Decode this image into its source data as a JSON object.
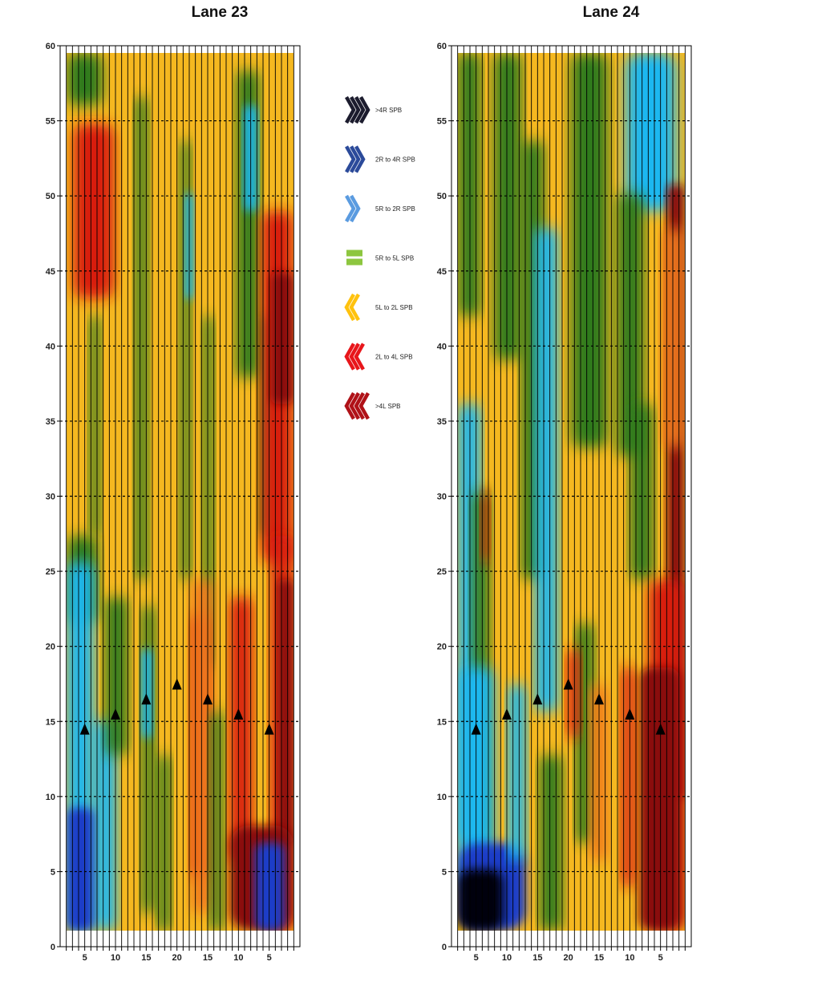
{
  "colors": {
    "very_right": "#1c1c2e",
    "right_2_4": "#2b4a9a",
    "right_small": "#5a9be0",
    "neutral": "#8dc63f",
    "left_small": "#ffc20e",
    "left_2_4": "#e8161b",
    "very_left": "#b01218",
    "field_blue": "#1a3cc8",
    "field_cyan": "#1ab8f0",
    "field_green": "#2f7a1a",
    "field_yellow": "#f5b820",
    "field_orange": "#f07a1a",
    "field_red": "#d81a10",
    "field_darkred": "#8a0a0a",
    "field_black": "#050510"
  },
  "legend": [
    {
      "label": ">4R SPB",
      "icon": "triple-chevron-right-icon",
      "color": "#1c1c2e"
    },
    {
      "label": "2R to 4R SPB",
      "icon": "double-chevron-right-icon",
      "color": "#2b4a9a"
    },
    {
      "label": "5R to 2R SPB",
      "icon": "chevron-right-icon",
      "color": "#5a9be0"
    },
    {
      "label": "5R to 5L SPB",
      "icon": "equals-icon",
      "color": "#8dc63f"
    },
    {
      "label": "5L to 2L SPB",
      "icon": "chevron-left-icon",
      "color": "#ffc20e"
    },
    {
      "label": "2L to 4L SPB",
      "icon": "double-chevron-left-icon",
      "color": "#e8161b"
    },
    {
      "label": ">4L SPB",
      "icon": "triple-chevron-left-icon",
      "color": "#b01218"
    }
  ],
  "chart_data": [
    {
      "type": "heatmap",
      "title": "Lane 23",
      "xlabel": "",
      "ylabel": "",
      "ylim": [
        0,
        60
      ],
      "yticks": [
        0,
        5,
        10,
        15,
        20,
        25,
        30,
        35,
        40,
        45,
        50,
        55,
        60
      ],
      "xticks": [
        "5",
        "10",
        "15",
        "20",
        "15",
        "10",
        "5"
      ],
      "grid": true,
      "boards": 39,
      "arrows": [
        {
          "board": 5,
          "distance": 14.5
        },
        {
          "board": 10,
          "distance": 15.5
        },
        {
          "board": 15,
          "distance": 16.5
        },
        {
          "board": 20,
          "distance": 17.5
        },
        {
          "board": 25,
          "distance": 16.5
        },
        {
          "board": 30,
          "distance": 15.5
        },
        {
          "board": 35,
          "distance": 14.5
        }
      ]
    },
    {
      "type": "heatmap",
      "title": "Lane 24",
      "xlabel": "",
      "ylabel": "",
      "ylim": [
        0,
        60
      ],
      "yticks": [
        0,
        5,
        10,
        15,
        20,
        25,
        30,
        35,
        40,
        45,
        50,
        55,
        60
      ],
      "xticks": [
        "5",
        "10",
        "15",
        "20",
        "15",
        "10",
        "5"
      ],
      "grid": true,
      "boards": 39,
      "arrows": [
        {
          "board": 5,
          "distance": 14.5
        },
        {
          "board": 10,
          "distance": 15.5
        },
        {
          "board": 15,
          "distance": 16.5
        },
        {
          "board": 20,
          "distance": 17.5
        },
        {
          "board": 25,
          "distance": 16.5
        },
        {
          "board": 30,
          "distance": 15.5
        },
        {
          "board": 35,
          "distance": 14.5
        }
      ]
    }
  ]
}
